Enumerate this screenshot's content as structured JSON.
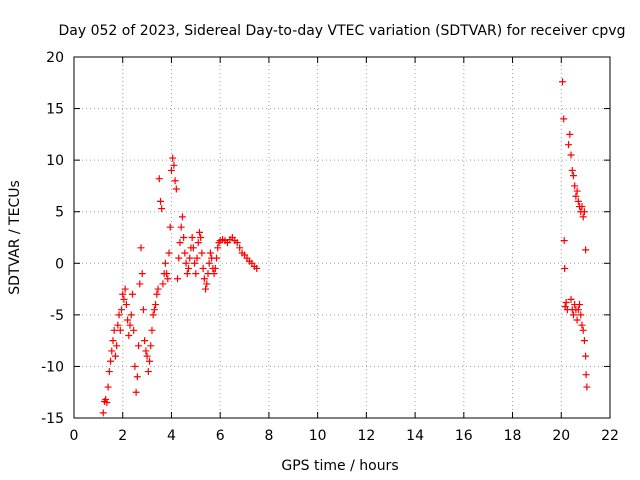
{
  "chart_data": {
    "type": "scatter",
    "title": "Day 052 of 2023, Sidereal Day-to-day VTEC variation (SDTVAR) for receiver cpvg",
    "xlabel": "GPS time / hours",
    "ylabel": "SDTVAR / TECUs",
    "xlim": [
      0,
      22
    ],
    "ylim": [
      -15,
      20
    ],
    "x_ticks": [
      0,
      2,
      4,
      6,
      8,
      10,
      12,
      14,
      16,
      18,
      20,
      22
    ],
    "x_tick_labels": [
      "0",
      "2",
      "4",
      "6",
      "8",
      "10",
      "12",
      "14",
      "16",
      "18",
      "20",
      "22"
    ],
    "y_ticks": [
      -15,
      -10,
      -5,
      0,
      5,
      10,
      15,
      20
    ],
    "y_tick_labels": [
      "-15",
      "-10",
      "-5",
      "0",
      "5",
      "10",
      "15",
      "20"
    ],
    "grid": true,
    "marker": "+",
    "marker_color": "#ff0000",
    "series": [
      {
        "name": "SDTVAR",
        "points": [
          [
            1.2,
            -14.5
          ],
          [
            1.25,
            -13.4
          ],
          [
            1.3,
            -13.2
          ],
          [
            1.35,
            -13.5
          ],
          [
            1.4,
            -12.0
          ],
          [
            1.45,
            -10.5
          ],
          [
            1.5,
            -9.5
          ],
          [
            1.55,
            -8.5
          ],
          [
            1.6,
            -7.5
          ],
          [
            1.65,
            -6.5
          ],
          [
            1.7,
            -9.0
          ],
          [
            1.75,
            -8.0
          ],
          [
            1.8,
            -6.0
          ],
          [
            1.85,
            -5.0
          ],
          [
            1.9,
            -6.5
          ],
          [
            1.95,
            -4.5
          ],
          [
            2.0,
            -3.0
          ],
          [
            2.05,
            -3.5
          ],
          [
            2.1,
            -2.5
          ],
          [
            2.15,
            -4.0
          ],
          [
            2.2,
            -5.5
          ],
          [
            2.25,
            -7.0
          ],
          [
            2.3,
            -6.0
          ],
          [
            2.35,
            -5.0
          ],
          [
            2.4,
            -3.0
          ],
          [
            2.45,
            -6.5
          ],
          [
            2.5,
            -10.0
          ],
          [
            2.55,
            -12.5
          ],
          [
            2.6,
            -11.0
          ],
          [
            2.65,
            -8.0
          ],
          [
            2.7,
            -2.0
          ],
          [
            2.75,
            1.5
          ],
          [
            2.8,
            -1.0
          ],
          [
            2.85,
            -4.5
          ],
          [
            2.9,
            -7.5
          ],
          [
            2.95,
            -8.5
          ],
          [
            3.0,
            -9.0
          ],
          [
            3.05,
            -10.5
          ],
          [
            3.1,
            -9.5
          ],
          [
            3.15,
            -8.0
          ],
          [
            3.2,
            -6.5
          ],
          [
            3.25,
            -5.0
          ],
          [
            3.3,
            -4.5
          ],
          [
            3.35,
            -4.0
          ],
          [
            3.4,
            -3.0
          ],
          [
            3.45,
            -2.5
          ],
          [
            3.5,
            8.2
          ],
          [
            3.55,
            6.0
          ],
          [
            3.6,
            5.3
          ],
          [
            3.65,
            -2.0
          ],
          [
            3.7,
            -1.0
          ],
          [
            3.75,
            0.0
          ],
          [
            3.8,
            -1.0
          ],
          [
            3.85,
            -1.5
          ],
          [
            3.9,
            1.0
          ],
          [
            3.95,
            3.5
          ],
          [
            4.0,
            9.0
          ],
          [
            4.05,
            10.2
          ],
          [
            4.1,
            9.5
          ],
          [
            4.15,
            8.0
          ],
          [
            4.2,
            7.2
          ],
          [
            4.25,
            -1.5
          ],
          [
            4.3,
            0.5
          ],
          [
            4.35,
            2.0
          ],
          [
            4.4,
            3.5
          ],
          [
            4.45,
            4.5
          ],
          [
            4.5,
            2.5
          ],
          [
            4.55,
            1.0
          ],
          [
            4.6,
            0.0
          ],
          [
            4.65,
            -1.0
          ],
          [
            4.7,
            -0.5
          ],
          [
            4.75,
            0.5
          ],
          [
            4.8,
            1.5
          ],
          [
            4.85,
            2.5
          ],
          [
            4.9,
            1.5
          ],
          [
            4.95,
            0.0
          ],
          [
            5.0,
            -1.0
          ],
          [
            5.05,
            0.5
          ],
          [
            5.1,
            2.0
          ],
          [
            5.15,
            3.0
          ],
          [
            5.2,
            2.5
          ],
          [
            5.25,
            1.0
          ],
          [
            5.3,
            -0.5
          ],
          [
            5.35,
            -1.5
          ],
          [
            5.4,
            -2.5
          ],
          [
            5.45,
            -2.0
          ],
          [
            5.5,
            -1.0
          ],
          [
            5.55,
            0.0
          ],
          [
            5.6,
            1.0
          ],
          [
            5.65,
            0.5
          ],
          [
            5.7,
            -0.5
          ],
          [
            5.75,
            -1.0
          ],
          [
            5.8,
            -0.5
          ],
          [
            5.85,
            0.5
          ],
          [
            5.9,
            1.5
          ],
          [
            5.95,
            2.0
          ],
          [
            6.0,
            2.2
          ],
          [
            6.1,
            2.3
          ],
          [
            6.2,
            2.2
          ],
          [
            6.3,
            2.0
          ],
          [
            6.4,
            2.3
          ],
          [
            6.5,
            2.5
          ],
          [
            6.6,
            2.2
          ],
          [
            6.7,
            2.0
          ],
          [
            6.8,
            1.5
          ],
          [
            6.9,
            1.0
          ],
          [
            7.0,
            0.8
          ],
          [
            7.1,
            0.5
          ],
          [
            7.2,
            0.2
          ],
          [
            7.3,
            0.0
          ],
          [
            7.4,
            -0.3
          ],
          [
            7.5,
            -0.5
          ],
          [
            20.05,
            17.6
          ],
          [
            20.1,
            14.0
          ],
          [
            20.12,
            2.2
          ],
          [
            20.14,
            -0.5
          ],
          [
            20.16,
            -4.2
          ],
          [
            20.2,
            -3.8
          ],
          [
            20.25,
            -4.5
          ],
          [
            20.3,
            11.5
          ],
          [
            20.35,
            12.5
          ],
          [
            20.4,
            10.5
          ],
          [
            20.45,
            9.0
          ],
          [
            20.5,
            8.5
          ],
          [
            20.55,
            7.5
          ],
          [
            20.6,
            6.5
          ],
          [
            20.65,
            7.0
          ],
          [
            20.7,
            6.0
          ],
          [
            20.75,
            5.5
          ],
          [
            20.8,
            5.0
          ],
          [
            20.85,
            5.5
          ],
          [
            20.9,
            4.5
          ],
          [
            20.95,
            5.0
          ],
          [
            21.0,
            1.3
          ],
          [
            20.4,
            -3.5
          ],
          [
            20.45,
            -4.5
          ],
          [
            20.5,
            -5.0
          ],
          [
            20.55,
            -4.0
          ],
          [
            20.6,
            -4.5
          ],
          [
            20.65,
            -5.5
          ],
          [
            20.7,
            -4.5
          ],
          [
            20.75,
            -4.0
          ],
          [
            20.8,
            -5.0
          ],
          [
            20.85,
            -6.0
          ],
          [
            20.9,
            -6.5
          ],
          [
            20.95,
            -7.5
          ],
          [
            21.0,
            -9.0
          ],
          [
            21.02,
            -10.8
          ],
          [
            21.05,
            -12.0
          ]
        ]
      }
    ]
  }
}
